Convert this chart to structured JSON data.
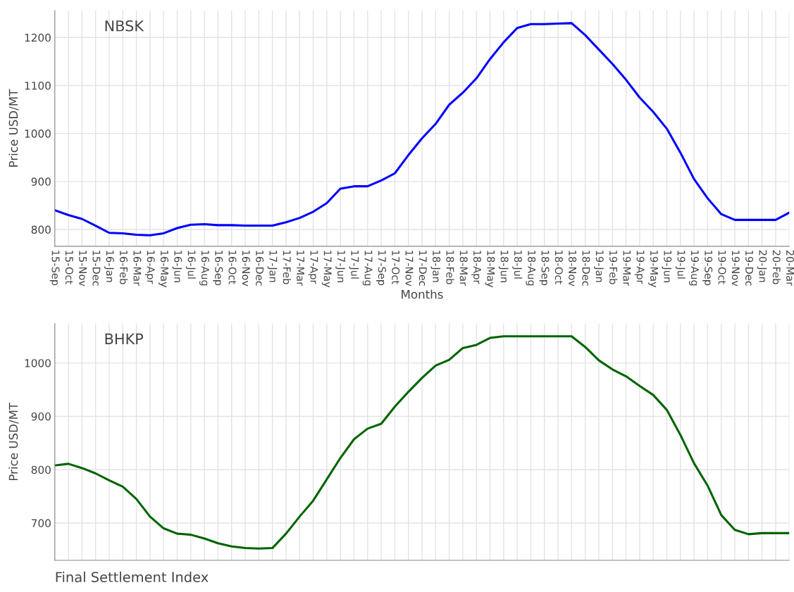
{
  "chart_data": [
    {
      "type": "line",
      "xlabel": "Months",
      "ylabel": "Price USD/MT",
      "grid": true,
      "marker": "none",
      "line_style": "solid",
      "categories": [
        "15-Sep",
        "15-Oct",
        "15-Nov",
        "15-Dec",
        "16-Jan",
        "16-Feb",
        "16-Mar",
        "16-Apr",
        "16-May",
        "16-Jun",
        "16-Jul",
        "16-Aug",
        "16-Sep",
        "16-Oct",
        "16-Nov",
        "16-Dec",
        "17-Jan",
        "17-Feb",
        "17-Mar",
        "17-Apr",
        "17-May",
        "17-Jun",
        "17-Jul",
        "17-Aug",
        "17-Sep",
        "17-Oct",
        "17-Nov",
        "17-Dec",
        "18-Jan",
        "18-Feb",
        "18-Mar",
        "18-Apr",
        "18-May",
        "18-Jun",
        "18-Jul",
        "18-Aug",
        "18-Sep",
        "18-Oct",
        "18-Nov",
        "18-Dec",
        "19-Jan",
        "19-Feb",
        "19-Mar",
        "19-Apr",
        "19-May",
        "19-Jun",
        "19-Jul",
        "19-Aug",
        "19-Sep",
        "19-Oct",
        "19-Nov",
        "19-Dec",
        "20-Jan",
        "20-Feb",
        "20-Mar"
      ],
      "series": [
        {
          "name": "NBSK",
          "color": "#0000ff",
          "values": [
            840,
            830,
            822,
            808,
            793,
            792,
            789,
            788,
            792,
            803,
            810,
            811,
            809,
            809,
            808,
            808,
            808,
            815,
            824,
            837,
            855,
            885,
            890,
            890,
            902,
            917,
            955,
            990,
            1020,
            1060,
            1085,
            1115,
            1155,
            1190,
            1220,
            1228,
            1228,
            1229,
            1230,
            1205,
            1175,
            1145,
            1112,
            1075,
            1045,
            1010,
            960,
            905,
            865,
            832,
            820,
            820,
            820,
            820,
            835
          ]
        }
      ],
      "ylim": [
        765,
        1256
      ],
      "yticks": [
        800,
        900,
        1000,
        1100,
        1200
      ]
    },
    {
      "type": "line",
      "ylabel": "Price USD/MT",
      "grid": true,
      "marker": "none",
      "line_style": "solid",
      "categories": [
        null,
        null,
        null,
        null,
        null,
        null,
        null,
        null,
        null,
        null,
        null,
        null,
        null,
        null,
        null,
        null,
        null,
        null,
        null,
        null,
        null,
        null,
        null,
        null,
        null,
        null,
        null,
        null,
        null,
        null,
        null,
        null,
        null,
        null,
        null,
        null,
        null,
        null,
        null,
        null,
        null,
        null,
        null,
        null,
        null,
        null,
        null,
        null,
        null,
        null,
        null,
        null,
        null,
        null,
        null
      ],
      "series": [
        {
          "name": "BHKP",
          "color": "#006400",
          "values": [
            808,
            811,
            803,
            793,
            780,
            768,
            745,
            712,
            690,
            680,
            678,
            671,
            662,
            656,
            653,
            652,
            653,
            680,
            712,
            742,
            782,
            822,
            857,
            877,
            886,
            918,
            946,
            972,
            995,
            1006,
            1028,
            1034,
            1047,
            1050,
            1050,
            1050,
            1050,
            1050,
            1050,
            1030,
            1005,
            988,
            975,
            957,
            940,
            912,
            865,
            812,
            770,
            715,
            687,
            679,
            681,
            681,
            681
          ]
        }
      ],
      "ylim": [
        630,
        1074
      ],
      "yticks": [
        700,
        800,
        900,
        1000
      ],
      "annotations": [
        "Final Settlement Index"
      ]
    }
  ]
}
